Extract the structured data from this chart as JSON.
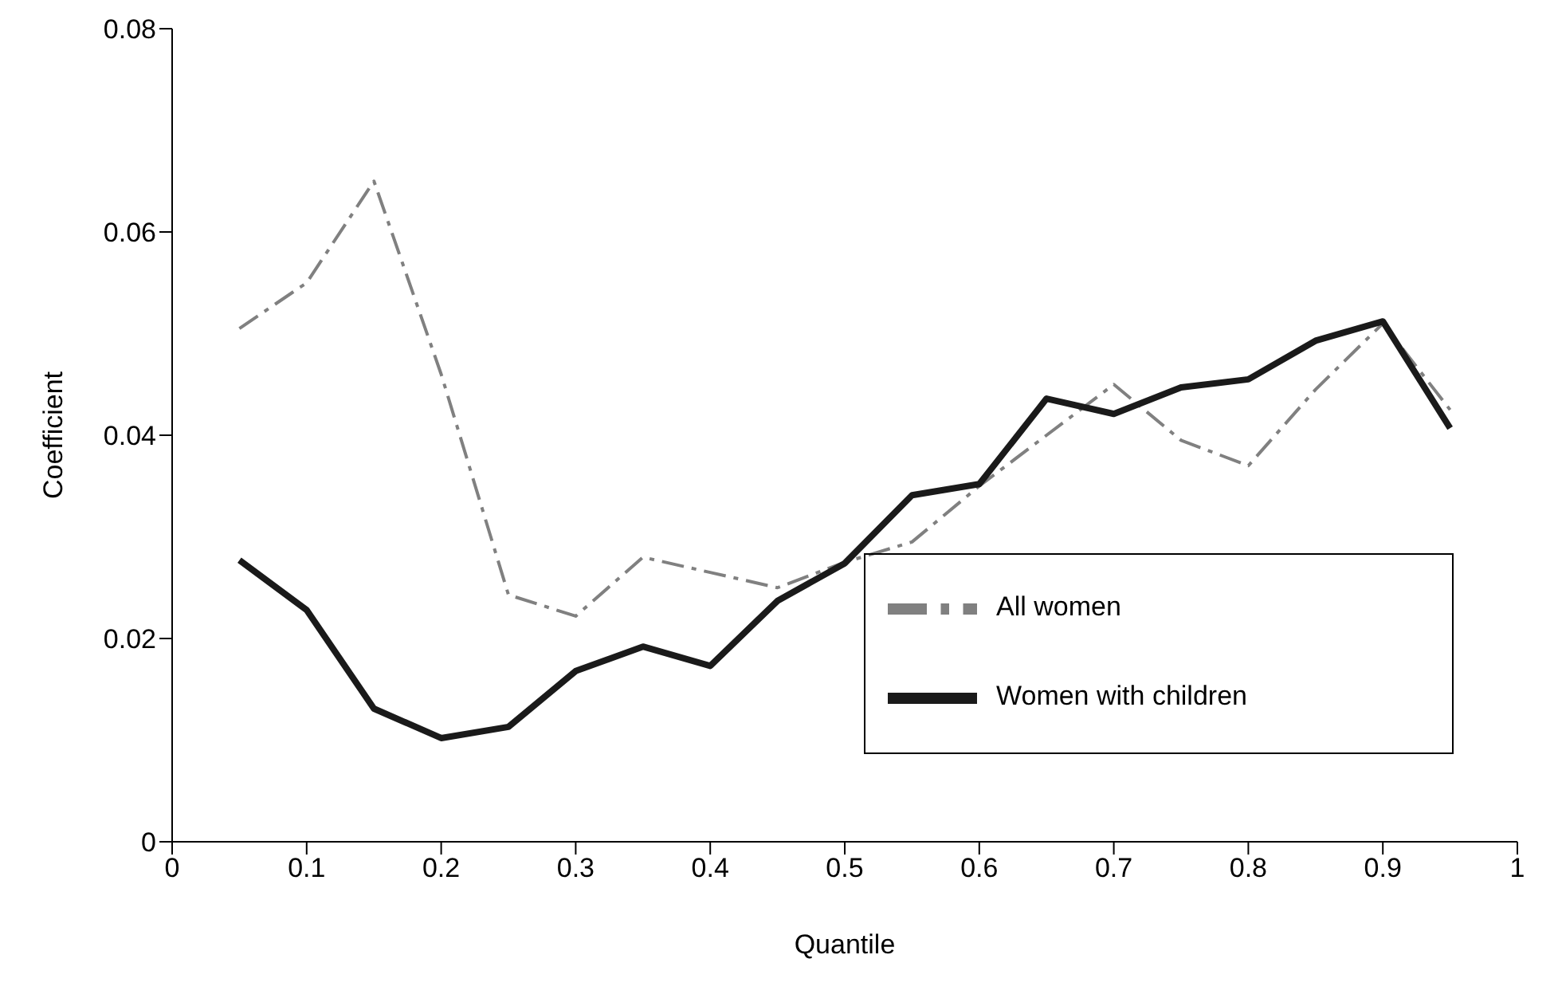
{
  "chart_data": {
    "type": "line",
    "xlabel": "Quantile",
    "ylabel": "Coefficient",
    "x": [
      0.05,
      0.1,
      0.15,
      0.2,
      0.25,
      0.3,
      0.35,
      0.4,
      0.45,
      0.5,
      0.55,
      0.6,
      0.65,
      0.7,
      0.75,
      0.8,
      0.85,
      0.9,
      0.95
    ],
    "series": [
      {
        "name": "All women",
        "color": "#808080",
        "line_style": "dashed",
        "values": [
          0.0505,
          0.055,
          0.065,
          0.046,
          0.0243,
          0.0222,
          0.028,
          0.0265,
          0.025,
          0.0275,
          0.0295,
          0.035,
          0.04,
          0.045,
          0.0395,
          0.037,
          0.0445,
          0.051,
          0.0425
        ]
      },
      {
        "name": "Women with children",
        "color": "#1a1a1a",
        "line_style": "solid",
        "values": [
          0.0277,
          0.0228,
          0.0131,
          0.0102,
          0.0113,
          0.0168,
          0.0192,
          0.0173,
          0.0237,
          0.0274,
          0.0341,
          0.0352,
          0.0436,
          0.0421,
          0.0447,
          0.0455,
          0.0493,
          0.0512,
          0.0407
        ]
      }
    ],
    "xlim": [
      0,
      1
    ],
    "xticks": [
      0,
      0.1,
      0.2,
      0.3,
      0.4,
      0.5,
      0.6,
      0.7,
      0.8,
      0.9,
      1
    ],
    "ylim": [
      0,
      0.08
    ],
    "yticks": [
      0,
      0.02,
      0.04,
      0.06,
      0.08
    ],
    "grid": false,
    "legend": "bottom right",
    "marker": "none"
  }
}
